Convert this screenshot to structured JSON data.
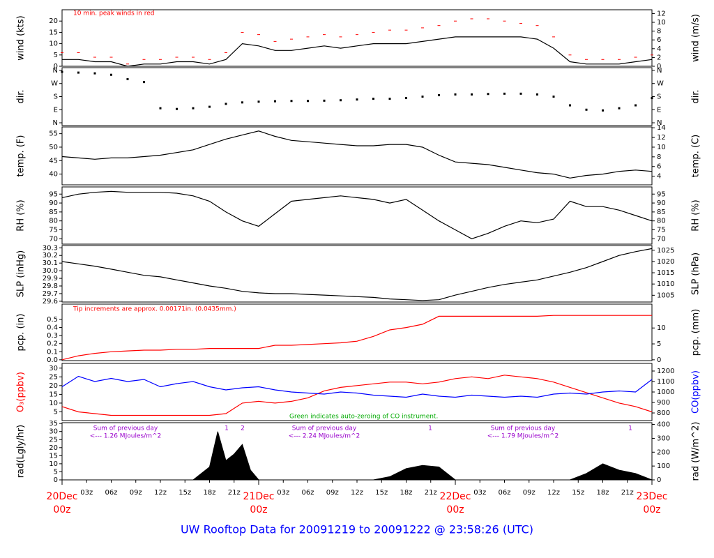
{
  "title": "UW Rooftop Data for 20091219  to  20091222 @ 23:58:26  (UTC)",
  "chart_data": [
    {
      "type": "line",
      "ylabel": "wind (kts)",
      "y2label": "wind (m/s)",
      "ylim": [
        0,
        25
      ],
      "yticks": [
        0,
        5,
        10,
        15,
        20
      ],
      "y2lim": [
        0,
        12.86
      ],
      "y2ticks": [
        0,
        2,
        4,
        6,
        8,
        10,
        12
      ],
      "annotations": [
        "10 min. peak winds in red"
      ],
      "annotation_color": "#ff0000",
      "x": [
        0,
        2,
        4,
        6,
        8,
        10,
        12,
        14,
        16,
        18,
        20,
        22,
        24,
        26,
        28,
        30,
        32,
        34,
        36,
        38,
        40,
        42,
        44,
        46,
        48,
        50,
        52,
        54,
        56,
        58,
        60,
        62,
        64,
        66,
        68,
        70,
        72
      ],
      "series": [
        {
          "color": "#000000",
          "values": [
            3,
            3,
            2,
            2,
            0,
            1,
            1,
            2,
            2,
            1,
            3,
            10,
            9,
            7,
            7,
            8,
            9,
            8,
            9,
            10,
            10,
            10,
            11,
            12,
            13,
            13,
            13,
            13,
            13,
            12,
            8,
            2,
            1,
            1,
            1,
            2,
            3
          ]
        },
        {
          "color": "#ff0000",
          "type": "scatter",
          "marker": "dash",
          "values": [
            6,
            6,
            4,
            4,
            1,
            3,
            3,
            4,
            4,
            3,
            6,
            15,
            14,
            11,
            12,
            13,
            14,
            13,
            14,
            15,
            16,
            16,
            17,
            18,
            20,
            21,
            21,
            20,
            19,
            18,
            13,
            5,
            3,
            3,
            3,
            4,
            5
          ]
        }
      ]
    },
    {
      "type": "scatter",
      "ylabel": "dir.",
      "y2label": "dir.",
      "ylim": [
        -19,
        379
      ],
      "yticks": [
        {
          "value": 0,
          "label": "N"
        },
        {
          "value": 90,
          "label": "E"
        },
        {
          "value": 180,
          "label": "S"
        },
        {
          "value": 270,
          "label": "W"
        },
        {
          "value": 360,
          "label": "N"
        }
      ],
      "y2lim": [
        -19,
        379
      ],
      "y2ticks": [
        {
          "value": 0,
          "label": "N"
        },
        {
          "value": 90,
          "label": "E"
        },
        {
          "value": 180,
          "label": "S"
        },
        {
          "value": 270,
          "label": "W"
        },
        {
          "value": 360,
          "label": "N"
        }
      ],
      "x": [
        0,
        2,
        4,
        6,
        8,
        10,
        12,
        14,
        16,
        18,
        20,
        22,
        24,
        26,
        28,
        30,
        32,
        34,
        36,
        38,
        40,
        42,
        44,
        46,
        48,
        50,
        52,
        54,
        56,
        58,
        60,
        62,
        64,
        66,
        68,
        70,
        72
      ],
      "series": [
        {
          "color": "#000000",
          "values": [
            350,
            345,
            340,
            330,
            300,
            280,
            100,
            95,
            100,
            110,
            130,
            140,
            145,
            148,
            150,
            150,
            152,
            155,
            160,
            165,
            165,
            170,
            180,
            190,
            195,
            195,
            198,
            200,
            200,
            195,
            180,
            120,
            90,
            85,
            100,
            120,
            170
          ]
        }
      ]
    },
    {
      "type": "line",
      "ylabel": "temp. (F)",
      "y2label": "temp. (C)",
      "ylim": [
        36,
        57.5
      ],
      "yticks": [
        40,
        45,
        50,
        55
      ],
      "y2lim": [
        2.22,
        14.17
      ],
      "y2ticks": [
        4,
        6,
        8,
        10,
        12,
        14
      ],
      "x": [
        0,
        2,
        4,
        6,
        8,
        10,
        12,
        14,
        16,
        18,
        20,
        22,
        24,
        26,
        28,
        30,
        32,
        34,
        36,
        38,
        40,
        42,
        44,
        46,
        48,
        50,
        52,
        54,
        56,
        58,
        60,
        62,
        64,
        66,
        68,
        70,
        72
      ],
      "series": [
        {
          "color": "#000000",
          "values": [
            46.5,
            46,
            45.5,
            46,
            46,
            46.5,
            47,
            48,
            49,
            51,
            53,
            54.5,
            56,
            54,
            52.5,
            52,
            51.5,
            51,
            50.5,
            50.5,
            51,
            51,
            50,
            47,
            44.5,
            44,
            43.5,
            42.5,
            41.5,
            40.5,
            40,
            38.5,
            39.5,
            40,
            41,
            41.5,
            41
          ]
        }
      ]
    },
    {
      "type": "line",
      "ylabel": "RH (%)",
      "y2label": "RH (%)",
      "ylim": [
        67,
        99
      ],
      "yticks": [
        70,
        75,
        80,
        85,
        90,
        95
      ],
      "y2lim": [
        67,
        99
      ],
      "y2ticks": [
        70,
        75,
        80,
        85,
        90,
        95
      ],
      "x": [
        0,
        2,
        4,
        6,
        8,
        10,
        12,
        14,
        16,
        18,
        20,
        22,
        24,
        26,
        28,
        30,
        32,
        34,
        36,
        38,
        40,
        42,
        44,
        46,
        48,
        50,
        52,
        54,
        56,
        58,
        60,
        62,
        64,
        66,
        68,
        70,
        72
      ],
      "series": [
        {
          "color": "#000000",
          "values": [
            93,
            95,
            96,
            96.5,
            96,
            96,
            96,
            95.5,
            94,
            91,
            85,
            80,
            77,
            84,
            91,
            92,
            93,
            94,
            93,
            92,
            90,
            92,
            86,
            80,
            75,
            70,
            73,
            77,
            80,
            79,
            81,
            91,
            88,
            88,
            86,
            83,
            80
          ]
        }
      ]
    },
    {
      "type": "line",
      "ylabel": "SLP (inHg)",
      "y2label": "SLP (hPa)",
      "ylim": [
        29.59,
        30.33
      ],
      "yticks": [
        29.6,
        29.7,
        29.8,
        29.9,
        {
          "value": 30,
          "label": "30.0"
        },
        30.1,
        30.2,
        30.3
      ],
      "y2lim": [
        1002,
        1027.1
      ],
      "y2ticks": [
        1005,
        1010,
        1015,
        1020,
        1025
      ],
      "x": [
        0,
        2,
        4,
        6,
        8,
        10,
        12,
        14,
        16,
        18,
        20,
        22,
        24,
        26,
        28,
        30,
        32,
        34,
        36,
        38,
        40,
        42,
        44,
        46,
        48,
        50,
        52,
        54,
        56,
        58,
        60,
        62,
        64,
        66,
        68,
        70,
        72
      ],
      "series": [
        {
          "color": "#000000",
          "values": [
            30.12,
            30.09,
            30.06,
            30.02,
            29.98,
            29.94,
            29.92,
            29.88,
            29.84,
            29.8,
            29.77,
            29.73,
            29.71,
            29.7,
            29.7,
            29.69,
            29.68,
            29.67,
            29.66,
            29.65,
            29.63,
            29.62,
            29.61,
            29.62,
            29.68,
            29.73,
            29.78,
            29.82,
            29.85,
            29.88,
            29.93,
            29.98,
            30.04,
            30.12,
            30.2,
            30.25,
            30.29
          ]
        }
      ]
    },
    {
      "type": "line",
      "ylabel": "pcp. (in)",
      "y2label": "pcp. (mm)",
      "ylim": [
        -0.01,
        0.69
      ],
      "yticks": [
        {
          "value": 0,
          "label": "0.0"
        },
        0.1,
        0.2,
        0.3,
        0.4,
        0.5
      ],
      "y2lim": [
        -0.25,
        17.5
      ],
      "y2ticks": [
        0,
        5,
        10
      ],
      "annotations": [
        "Tip increments are approx. 0.00171in. (0.0435mm.)"
      ],
      "annotation_color": "#ff0000",
      "x": [
        0,
        2,
        4,
        6,
        8,
        10,
        12,
        14,
        16,
        18,
        20,
        22,
        24,
        26,
        28,
        30,
        32,
        34,
        36,
        38,
        40,
        42,
        44,
        46,
        48,
        50,
        52,
        54,
        56,
        58,
        60,
        62,
        64,
        66,
        68,
        70,
        72
      ],
      "series": [
        {
          "color": "#ff0000",
          "values": [
            0,
            0.05,
            0.08,
            0.1,
            0.11,
            0.12,
            0.12,
            0.13,
            0.13,
            0.14,
            0.14,
            0.14,
            0.14,
            0.18,
            0.18,
            0.19,
            0.2,
            0.21,
            0.23,
            0.29,
            0.37,
            0.4,
            0.44,
            0.54,
            0.54,
            0.54,
            0.54,
            0.54,
            0.54,
            0.54,
            0.55,
            0.55,
            0.55,
            0.55,
            0.55,
            0.55,
            0.55
          ]
        }
      ]
    },
    {
      "type": "line",
      "ylabel": "O₃(ppbv)",
      "y2label": "CO(ppbv)",
      "ylabel_color": "#ff0000",
      "y2label_color": "#0000ff",
      "ylim": [
        0,
        32.7
      ],
      "yticks": [
        5,
        10,
        15,
        20,
        25,
        30
      ],
      "y2lim": [
        727,
        1273
      ],
      "y2ticks": [
        800,
        900,
        1000,
        1100,
        1200
      ],
      "annotations": [
        "Green indicates auto-zeroing of CO instrument."
      ],
      "annotation_color": "#00aa00",
      "x": [
        0,
        2,
        4,
        6,
        8,
        10,
        12,
        14,
        16,
        18,
        20,
        22,
        24,
        26,
        28,
        30,
        32,
        34,
        36,
        38,
        40,
        42,
        44,
        46,
        48,
        50,
        52,
        54,
        56,
        58,
        60,
        62,
        64,
        66,
        68,
        70,
        72
      ],
      "series": [
        {
          "color": "#ff0000",
          "values": [
            8,
            5,
            4,
            3,
            3,
            3,
            3,
            3,
            3,
            3,
            4,
            10,
            11,
            10,
            11,
            13,
            17,
            19,
            20,
            21,
            22,
            22,
            21,
            22,
            24,
            25,
            24,
            26,
            25,
            24,
            22,
            19,
            16,
            13,
            10,
            8,
            5
          ]
        },
        {
          "color": "#0000ff",
          "axis": "y2",
          "values": [
            1050,
            1150,
            1100,
            1130,
            1100,
            1120,
            1050,
            1080,
            1100,
            1050,
            1020,
            1040,
            1050,
            1020,
            1000,
            990,
            980,
            1000,
            990,
            970,
            960,
            950,
            980,
            960,
            950,
            970,
            960,
            950,
            960,
            950,
            980,
            990,
            980,
            1000,
            1010,
            1000,
            1120
          ]
        }
      ]
    },
    {
      "type": "area",
      "ylabel": "rad(Lgly/hr)",
      "y2label": "rad (W/m^2)",
      "ylim": [
        0,
        35.5
      ],
      "yticks": [
        0,
        5,
        10,
        15,
        20,
        25,
        30,
        35
      ],
      "y2lim": [
        0,
        413
      ],
      "y2ticks": [
        0,
        100,
        200,
        300,
        400
      ],
      "annotations": [
        "Sum of previous day",
        "<--- 1.26 MJoules/m^2",
        "1",
        "2",
        "Sum of previous day",
        "<--- 2.24 MJoules/m^2",
        "1",
        "Sum of previous day",
        "<--- 1.79 MJoules/m^2",
        "1"
      ],
      "annotation_color": "#9900cc",
      "xlim": [
        0,
        72
      ],
      "xticks": [
        {
          "value": 0,
          "label": "00z"
        },
        {
          "value": 3,
          "label": "03z"
        },
        {
          "value": 6,
          "label": "06z"
        },
        {
          "value": 9,
          "label": "09z"
        },
        {
          "value": 12,
          "label": "12z"
        },
        {
          "value": 15,
          "label": "15z"
        },
        {
          "value": 18,
          "label": "18z"
        },
        {
          "value": 21,
          "label": "21z"
        },
        {
          "value": 24,
          "label": "00z"
        },
        {
          "value": 27,
          "label": "03z"
        },
        {
          "value": 30,
          "label": "06z"
        },
        {
          "value": 33,
          "label": "09z"
        },
        {
          "value": 36,
          "label": "12z"
        },
        {
          "value": 39,
          "label": "15z"
        },
        {
          "value": 42,
          "label": "18z"
        },
        {
          "value": 45,
          "label": "21z"
        },
        {
          "value": 48,
          "label": "00z"
        },
        {
          "value": 51,
          "label": "03z"
        },
        {
          "value": 54,
          "label": "06z"
        },
        {
          "value": 57,
          "label": "09z"
        },
        {
          "value": 60,
          "label": "12z"
        },
        {
          "value": 63,
          "label": "15z"
        },
        {
          "value": 66,
          "label": "18z"
        },
        {
          "value": 69,
          "label": "21z"
        },
        {
          "value": 72,
          "label": "00z"
        }
      ],
      "date_labels": [
        {
          "value": 0,
          "label": "20Dec"
        },
        {
          "value": 24,
          "label": "21Dec"
        },
        {
          "value": 48,
          "label": "22Dec"
        },
        {
          "value": 72,
          "label": "23Dec"
        }
      ],
      "x": [
        0,
        2,
        4,
        6,
        8,
        10,
        12,
        14,
        16,
        18,
        19,
        20,
        21,
        22,
        23,
        24,
        26,
        28,
        30,
        32,
        34,
        36,
        38,
        40,
        42,
        44,
        46,
        48,
        50,
        52,
        54,
        56,
        58,
        60,
        62,
        64,
        66,
        68,
        70,
        72
      ],
      "series": [
        {
          "color": "#000000",
          "values": [
            0,
            0,
            0,
            0,
            0,
            0,
            0,
            0,
            0,
            8,
            30,
            12,
            16,
            22,
            6,
            0,
            0,
            0,
            0,
            0,
            0,
            0,
            0,
            2,
            7,
            9,
            8,
            0,
            0,
            0,
            0,
            0,
            0,
            0,
            0,
            4,
            10,
            6,
            4,
            0
          ]
        }
      ]
    }
  ]
}
